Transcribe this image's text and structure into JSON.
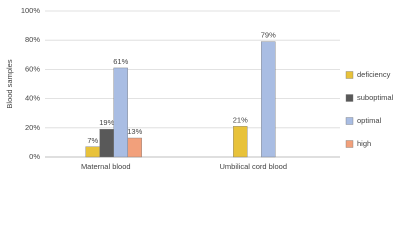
{
  "chart_data": {
    "type": "bar",
    "y_label": "Blood samples",
    "categories": [
      "Maternal blood",
      "Umbilical cord blood"
    ],
    "series": [
      {
        "name": "deficiency",
        "color": "#e8c23a",
        "values": [
          7,
          21
        ],
        "value_labels": [
          "7%",
          "21%"
        ]
      },
      {
        "name": "suboptimal",
        "color": "#595959",
        "values": [
          19,
          null
        ],
        "value_labels": [
          "19%",
          null
        ]
      },
      {
        "name": "optimal",
        "color": "#a9bde3",
        "values": [
          61,
          79
        ],
        "value_labels": [
          "61%",
          "79%"
        ]
      },
      {
        "name": "high",
        "color": "#f2a07b",
        "values": [
          13,
          null
        ],
        "value_labels": [
          "13%",
          null
        ]
      }
    ],
    "ylim": [
      0,
      100
    ],
    "yticks": [
      {
        "value": 0,
        "label": "0%"
      },
      {
        "value": 20,
        "label": "20%"
      },
      {
        "value": 40,
        "label": "40%"
      },
      {
        "value": 60,
        "label": "60%"
      },
      {
        "value": 80,
        "label": "80%"
      },
      {
        "value": 100,
        "label": "100%"
      }
    ],
    "grid": true
  }
}
